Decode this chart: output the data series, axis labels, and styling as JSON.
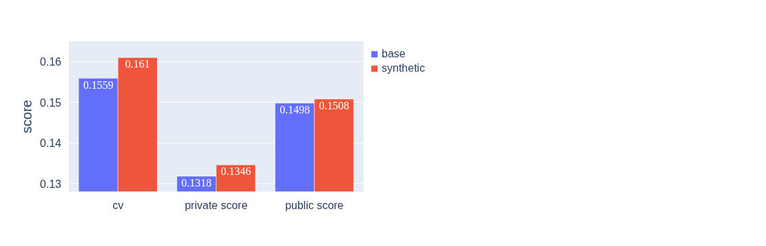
{
  "chart_data": {
    "type": "bar",
    "ylabel": "score",
    "categories": [
      "cv",
      "private score",
      "public score"
    ],
    "series": [
      {
        "name": "base",
        "color": "#636efa",
        "values": [
          0.1559,
          0.1318,
          0.1498
        ]
      },
      {
        "name": "synthetic",
        "color": "#ef553b",
        "values": [
          0.161,
          0.1346,
          0.1508
        ]
      }
    ],
    "ylim": [
      0.128,
      0.165
    ],
    "yticks": [
      0.13,
      0.14,
      0.15,
      0.16
    ],
    "grid": "y",
    "legend": "top right",
    "data_labels": true
  }
}
